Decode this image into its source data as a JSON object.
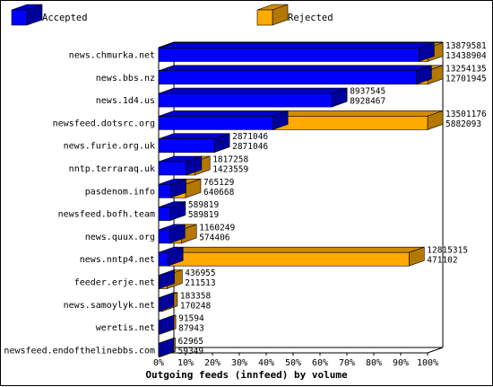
{
  "chart_data": {
    "type": "bar",
    "orientation": "horizontal",
    "stacked": true,
    "title": "Outgoing feeds (innfeed) by volume",
    "legend": [
      {
        "name": "Accepted",
        "color": "#0000ff",
        "dark": "#00009a",
        "light": "#0000c8"
      },
      {
        "name": "Rejected",
        "color": "#ffaa00",
        "dark": "#b47800",
        "light": "#d08c00"
      }
    ],
    "xtick_labels": [
      "0%",
      "10%",
      "20%",
      "30%",
      "40%",
      "50%",
      "60%",
      "70%",
      "80%",
      "90%",
      "100%"
    ],
    "xlim": [
      0,
      100
    ],
    "categories": [
      "news.chmurka.net",
      "news.bbs.nz",
      "news.1d4.us",
      "newsfeed.dotsrc.org",
      "news.furie.org.uk",
      "nntp.terraraq.uk",
      "pasdenom.info",
      "newsfeed.bofh.team",
      "news.quux.org",
      "news.nntp4.net",
      "feeder.erje.net",
      "news.samoylyk.net",
      "weretis.net",
      "newsfeed.endofthelinebbs.com"
    ],
    "offered": [
      13879581,
      13254135,
      8937545,
      13501176,
      2871046,
      1817258,
      765129,
      589819,
      1160249,
      12815315,
      436955,
      183358,
      91594,
      62965
    ],
    "accepted_pct": [
      96.8,
      95.8,
      64.4,
      42.4,
      20.7,
      10.3,
      4.5,
      4.3,
      4.1,
      3.4,
      0.2,
      0.0,
      0.0,
      0.0
    ],
    "rejected_pct": [
      3.2,
      4.2,
      0.0,
      57.6,
      0.0,
      3.1,
      5.5,
      0.0,
      4.3,
      89.7,
      2.9,
      1.3,
      0.7,
      0.5
    ],
    "value_labels_top": [
      "13879581",
      "13254135",
      "8937545",
      "13501176",
      "2871046",
      "1817258",
      "765129",
      "589819",
      "1160249",
      "12815315",
      "436955",
      "183358",
      "91594",
      "62965"
    ],
    "value_labels_bottom": [
      "13438904",
      "12701945",
      "8928467",
      "5882093",
      "2871046",
      "1423559",
      "640668",
      "589819",
      "574406",
      "471102",
      "211513",
      "170248",
      "87943",
      "59349"
    ]
  }
}
